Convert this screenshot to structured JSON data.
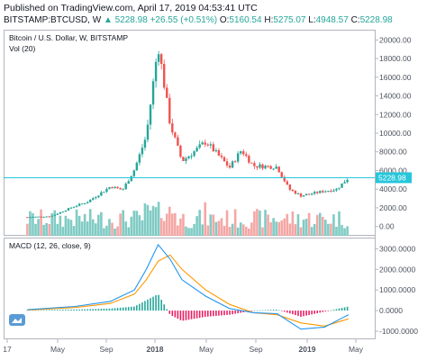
{
  "header": {
    "published": "Published on TradingView.com, April 17, 2019 04:53:41 UTC",
    "symbol": "BITSTAMP:BTCUSD, W",
    "last": "5228.98",
    "change": "+26.55 (+0.51%)",
    "o_label": "O:",
    "o_value": "5160.54",
    "h_label": "H:",
    "h_value": "5275.07",
    "l_label": "L:",
    "l_value": "4948.57",
    "c_label": "C:",
    "c_value": "5228.98"
  },
  "colors": {
    "up": "#26a69a",
    "down": "#ef5350",
    "vol_up": "#80cbc4",
    "vol_down": "#f4a7a5",
    "macd": "#2196f3",
    "signal": "#ff9800",
    "hist_up": "#26a69a",
    "hist_down": "#e91e63",
    "price_line": "#26c6da"
  },
  "chart_data": [
    {
      "type": "candlestick",
      "legend_title": "Bitcoin / U.S. Dollar, W, BITSTAMP",
      "volume_label": "Vol (20)",
      "price_axis_ticks": [
        "0.00",
        "2000.00",
        "4000.00",
        "6000.00",
        "8000.00",
        "10000.00",
        "12000.00",
        "14000.00",
        "16000.00",
        "18000.00",
        "20000.00"
      ],
      "ylim": [
        -1000,
        21000
      ],
      "last_price_label": "5228.98",
      "time_axis_ticks": [
        "17",
        "May",
        "Sep",
        "2018",
        "May",
        "Sep",
        "2019",
        "May"
      ],
      "approx_close_path": [
        {
          "x": "2017-01",
          "y": 1000
        },
        {
          "x": "2017-03",
          "y": 1100
        },
        {
          "x": "2017-05",
          "y": 2200
        },
        {
          "x": "2017-06",
          "y": 2600
        },
        {
          "x": "2017-08",
          "y": 4300
        },
        {
          "x": "2017-09",
          "y": 3900
        },
        {
          "x": "2017-10",
          "y": 6100
        },
        {
          "x": "2017-11",
          "y": 9700
        },
        {
          "x": "2017-12",
          "y": 19500
        },
        {
          "x": "2018-01",
          "y": 11000
        },
        {
          "x": "2018-02",
          "y": 7000
        },
        {
          "x": "2018-03",
          "y": 8000
        },
        {
          "x": "2018-04",
          "y": 9100
        },
        {
          "x": "2018-06",
          "y": 6300
        },
        {
          "x": "2018-07",
          "y": 8200
        },
        {
          "x": "2018-08",
          "y": 6500
        },
        {
          "x": "2018-10",
          "y": 6400
        },
        {
          "x": "2018-11",
          "y": 4000
        },
        {
          "x": "2018-12",
          "y": 3300
        },
        {
          "x": "2019-02",
          "y": 3800
        },
        {
          "x": "2019-03",
          "y": 4000
        },
        {
          "x": "2019-04",
          "y": 5229
        }
      ]
    },
    {
      "type": "line",
      "legend_title": "MACD (12, 26, close, 9)",
      "axis_ticks": [
        "3000.0000",
        "2000.0000",
        "1000.0000",
        "0.0000",
        "-1000.0000"
      ],
      "ylim": [
        -1350,
        3500
      ],
      "series": [
        {
          "role": "macd",
          "points": [
            {
              "x": "2017-01",
              "y": 50
            },
            {
              "x": "2017-05",
              "y": 200
            },
            {
              "x": "2017-08",
              "y": 450
            },
            {
              "x": "2017-10",
              "y": 1000
            },
            {
              "x": "2017-11",
              "y": 2000
            },
            {
              "x": "2017-12",
              "y": 3200
            },
            {
              "x": "2018-01",
              "y": 2500
            },
            {
              "x": "2018-02",
              "y": 1500
            },
            {
              "x": "2018-04",
              "y": 700
            },
            {
              "x": "2018-06",
              "y": 100
            },
            {
              "x": "2018-08",
              "y": -100
            },
            {
              "x": "2018-10",
              "y": -150
            },
            {
              "x": "2018-12",
              "y": -900
            },
            {
              "x": "2019-02",
              "y": -800
            },
            {
              "x": "2019-04",
              "y": -200
            }
          ]
        },
        {
          "role": "signal",
          "points": [
            {
              "x": "2017-01",
              "y": 30
            },
            {
              "x": "2017-05",
              "y": 150
            },
            {
              "x": "2017-08",
              "y": 350
            },
            {
              "x": "2017-10",
              "y": 800
            },
            {
              "x": "2017-11",
              "y": 1500
            },
            {
              "x": "2017-12",
              "y": 2400
            },
            {
              "x": "2018-01",
              "y": 2700
            },
            {
              "x": "2018-02",
              "y": 2000
            },
            {
              "x": "2018-04",
              "y": 1000
            },
            {
              "x": "2018-06",
              "y": 300
            },
            {
              "x": "2018-08",
              "y": -100
            },
            {
              "x": "2018-10",
              "y": -200
            },
            {
              "x": "2018-12",
              "y": -600
            },
            {
              "x": "2019-02",
              "y": -750
            },
            {
              "x": "2019-04",
              "y": -400
            }
          ]
        }
      ]
    }
  ]
}
